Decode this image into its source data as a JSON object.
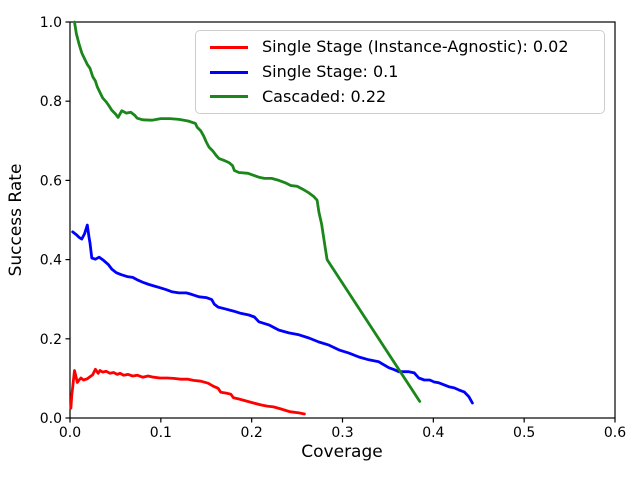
{
  "figure": {
    "background": "#ffffff"
  },
  "chart_data": {
    "type": "line",
    "title": "",
    "xlabel": "Coverage",
    "ylabel": "Success Rate",
    "xlim": [
      0.0,
      0.6
    ],
    "ylim": [
      0.0,
      1.0
    ],
    "xtick_labels": [
      "0.0",
      "0.1",
      "0.2",
      "0.3",
      "0.4",
      "0.5",
      "0.6"
    ],
    "ytick_labels": [
      "0.0",
      "0.2",
      "0.4",
      "0.6",
      "0.8",
      "1.0"
    ],
    "grid": false,
    "legend_position": "upper right",
    "axis_color": "#000000",
    "series": [
      {
        "name": "Single Stage (Instance-Agnostic): 0.02",
        "color": "#ff0000",
        "points": [
          [
            0.001,
            0.025
          ],
          [
            0.002,
            0.058
          ],
          [
            0.003,
            0.078
          ],
          [
            0.005,
            0.12
          ],
          [
            0.008,
            0.09
          ],
          [
            0.01,
            0.096
          ],
          [
            0.012,
            0.101
          ],
          [
            0.015,
            0.096
          ],
          [
            0.019,
            0.099
          ],
          [
            0.022,
            0.104
          ],
          [
            0.025,
            0.109
          ],
          [
            0.028,
            0.123
          ],
          [
            0.031,
            0.113
          ],
          [
            0.033,
            0.12
          ],
          [
            0.036,
            0.116
          ],
          [
            0.04,
            0.118
          ],
          [
            0.044,
            0.113
          ],
          [
            0.048,
            0.115
          ],
          [
            0.052,
            0.11
          ],
          [
            0.055,
            0.113
          ],
          [
            0.059,
            0.108
          ],
          [
            0.064,
            0.11
          ],
          [
            0.069,
            0.106
          ],
          [
            0.074,
            0.108
          ],
          [
            0.08,
            0.103
          ],
          [
            0.086,
            0.106
          ],
          [
            0.092,
            0.103
          ],
          [
            0.099,
            0.101
          ],
          [
            0.107,
            0.101
          ],
          [
            0.114,
            0.1
          ],
          [
            0.122,
            0.098
          ],
          [
            0.13,
            0.098
          ],
          [
            0.136,
            0.095
          ],
          [
            0.144,
            0.093
          ],
          [
            0.152,
            0.088
          ],
          [
            0.158,
            0.08
          ],
          [
            0.163,
            0.075
          ],
          [
            0.166,
            0.065
          ],
          [
            0.172,
            0.063
          ],
          [
            0.177,
            0.06
          ],
          [
            0.18,
            0.051
          ],
          [
            0.186,
            0.048
          ],
          [
            0.194,
            0.043
          ],
          [
            0.202,
            0.038
          ],
          [
            0.21,
            0.033
          ],
          [
            0.217,
            0.03
          ],
          [
            0.224,
            0.028
          ],
          [
            0.232,
            0.023
          ],
          [
            0.242,
            0.016
          ],
          [
            0.252,
            0.013
          ],
          [
            0.258,
            0.01
          ]
        ]
      },
      {
        "name": "Single Stage: 0.1",
        "color": "#0000ff",
        "points": [
          [
            0.003,
            0.47
          ],
          [
            0.007,
            0.463
          ],
          [
            0.01,
            0.456
          ],
          [
            0.013,
            0.452
          ],
          [
            0.016,
            0.465
          ],
          [
            0.019,
            0.487
          ],
          [
            0.021,
            0.455
          ],
          [
            0.022,
            0.442
          ],
          [
            0.024,
            0.404
          ],
          [
            0.028,
            0.401
          ],
          [
            0.032,
            0.406
          ],
          [
            0.037,
            0.398
          ],
          [
            0.042,
            0.388
          ],
          [
            0.046,
            0.376
          ],
          [
            0.051,
            0.367
          ],
          [
            0.056,
            0.362
          ],
          [
            0.063,
            0.357
          ],
          [
            0.069,
            0.355
          ],
          [
            0.075,
            0.348
          ],
          [
            0.081,
            0.342
          ],
          [
            0.087,
            0.337
          ],
          [
            0.093,
            0.333
          ],
          [
            0.099,
            0.329
          ],
          [
            0.106,
            0.324
          ],
          [
            0.112,
            0.319
          ],
          [
            0.12,
            0.316
          ],
          [
            0.128,
            0.316
          ],
          [
            0.134,
            0.312
          ],
          [
            0.142,
            0.306
          ],
          [
            0.15,
            0.304
          ],
          [
            0.156,
            0.299
          ],
          [
            0.159,
            0.287
          ],
          [
            0.163,
            0.28
          ],
          [
            0.17,
            0.276
          ],
          [
            0.18,
            0.27
          ],
          [
            0.187,
            0.265
          ],
          [
            0.197,
            0.26
          ],
          [
            0.203,
            0.255
          ],
          [
            0.208,
            0.243
          ],
          [
            0.219,
            0.235
          ],
          [
            0.23,
            0.222
          ],
          [
            0.241,
            0.215
          ],
          [
            0.252,
            0.21
          ],
          [
            0.263,
            0.202
          ],
          [
            0.274,
            0.192
          ],
          [
            0.285,
            0.184
          ],
          [
            0.296,
            0.172
          ],
          [
            0.307,
            0.164
          ],
          [
            0.318,
            0.154
          ],
          [
            0.329,
            0.147
          ],
          [
            0.34,
            0.142
          ],
          [
            0.351,
            0.127
          ],
          [
            0.357,
            0.122
          ],
          [
            0.362,
            0.117
          ],
          [
            0.373,
            0.117
          ],
          [
            0.379,
            0.114
          ],
          [
            0.384,
            0.101
          ],
          [
            0.39,
            0.096
          ],
          [
            0.396,
            0.096
          ],
          [
            0.401,
            0.091
          ],
          [
            0.406,
            0.089
          ],
          [
            0.417,
            0.079
          ],
          [
            0.423,
            0.076
          ],
          [
            0.428,
            0.071
          ],
          [
            0.434,
            0.066
          ],
          [
            0.439,
            0.054
          ],
          [
            0.441,
            0.046
          ],
          [
            0.443,
            0.038
          ]
        ]
      },
      {
        "name": "Cascaded: 0.22",
        "color": "#1b871b",
        "points": [
          [
            0.005,
            1.0
          ],
          [
            0.007,
            0.97
          ],
          [
            0.01,
            0.944
          ],
          [
            0.013,
            0.922
          ],
          [
            0.015,
            0.912
          ],
          [
            0.019,
            0.893
          ],
          [
            0.022,
            0.883
          ],
          [
            0.025,
            0.862
          ],
          [
            0.028,
            0.851
          ],
          [
            0.03,
            0.836
          ],
          [
            0.033,
            0.822
          ],
          [
            0.036,
            0.808
          ],
          [
            0.04,
            0.798
          ],
          [
            0.043,
            0.788
          ],
          [
            0.046,
            0.777
          ],
          [
            0.05,
            0.768
          ],
          [
            0.053,
            0.759
          ],
          [
            0.057,
            0.776
          ],
          [
            0.062,
            0.77
          ],
          [
            0.067,
            0.772
          ],
          [
            0.071,
            0.765
          ],
          [
            0.074,
            0.757
          ],
          [
            0.08,
            0.753
          ],
          [
            0.09,
            0.752
          ],
          [
            0.1,
            0.756
          ],
          [
            0.11,
            0.756
          ],
          [
            0.12,
            0.754
          ],
          [
            0.13,
            0.75
          ],
          [
            0.138,
            0.744
          ],
          [
            0.14,
            0.734
          ],
          [
            0.144,
            0.725
          ],
          [
            0.147,
            0.713
          ],
          [
            0.15,
            0.697
          ],
          [
            0.153,
            0.684
          ],
          [
            0.157,
            0.675
          ],
          [
            0.161,
            0.663
          ],
          [
            0.164,
            0.655
          ],
          [
            0.169,
            0.651
          ],
          [
            0.175,
            0.645
          ],
          [
            0.179,
            0.637
          ],
          [
            0.181,
            0.625
          ],
          [
            0.186,
            0.62
          ],
          [
            0.196,
            0.618
          ],
          [
            0.202,
            0.613
          ],
          [
            0.208,
            0.608
          ],
          [
            0.214,
            0.605
          ],
          [
            0.222,
            0.605
          ],
          [
            0.23,
            0.6
          ],
          [
            0.237,
            0.594
          ],
          [
            0.243,
            0.587
          ],
          [
            0.25,
            0.585
          ],
          [
            0.256,
            0.578
          ],
          [
            0.262,
            0.57
          ],
          [
            0.268,
            0.56
          ],
          [
            0.272,
            0.55
          ],
          [
            0.274,
            0.52
          ],
          [
            0.277,
            0.49
          ],
          [
            0.279,
            0.46
          ],
          [
            0.281,
            0.43
          ],
          [
            0.283,
            0.4
          ],
          [
            0.385,
            0.042
          ]
        ]
      }
    ]
  }
}
